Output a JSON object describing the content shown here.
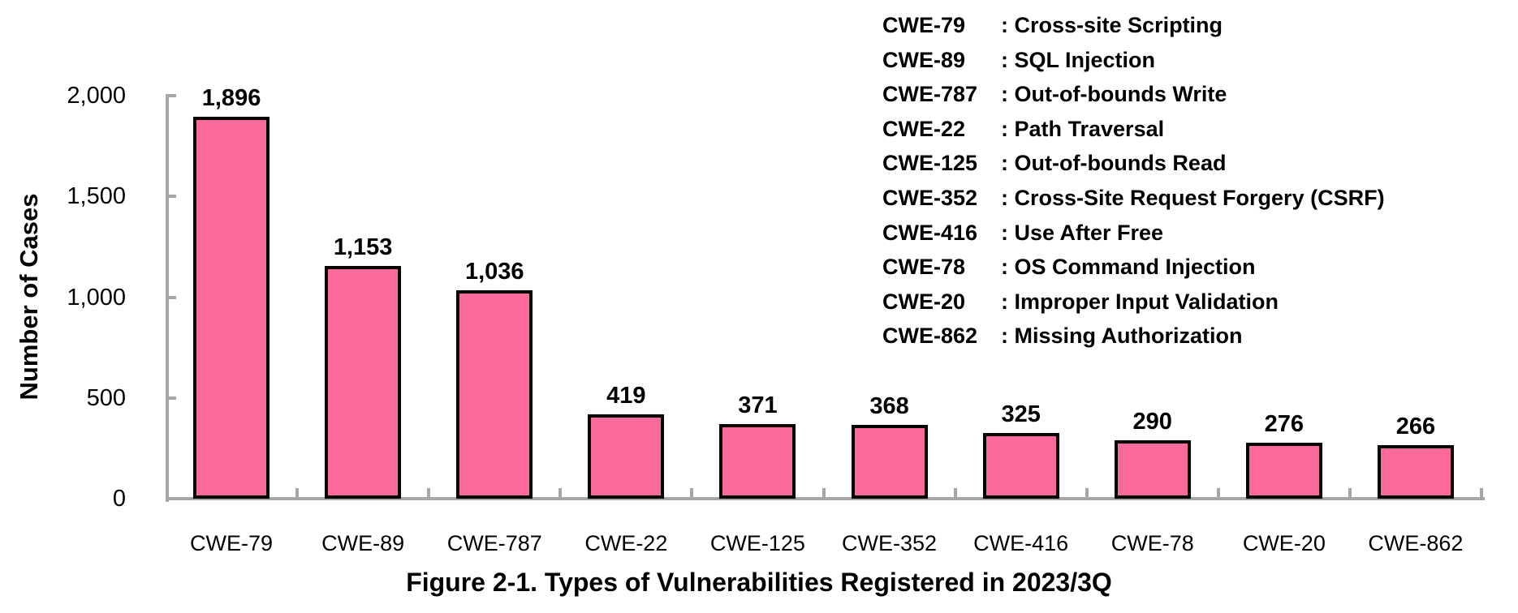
{
  "chart_data": {
    "type": "bar",
    "title": "Figure 2-1. Types of Vulnerabilities Registered in 2023/3Q",
    "ylabel": "Number of Cases",
    "ylim": [
      0,
      2000
    ],
    "grid": false,
    "legend_position": "top-right",
    "yticks": [
      {
        "value": 0,
        "label": "0"
      },
      {
        "value": 500,
        "label": "500"
      },
      {
        "value": 1000,
        "label": "1,000"
      },
      {
        "value": 1500,
        "label": "1,500"
      },
      {
        "value": 2000,
        "label": "2,000"
      }
    ],
    "categories": [
      "CWE-79",
      "CWE-89",
      "CWE-787",
      "CWE-22",
      "CWE-125",
      "CWE-352",
      "CWE-416",
      "CWE-78",
      "CWE-20",
      "CWE-862"
    ],
    "values": [
      1896,
      1153,
      1036,
      419,
      371,
      368,
      325,
      290,
      276,
      266
    ],
    "value_labels": [
      "1,896",
      "1,153",
      "1,036",
      "419",
      "371",
      "368",
      "325",
      "290",
      "276",
      "266"
    ],
    "bar_color": "#FA6A9C",
    "bar_border_color": "#000000",
    "axis_color": "#A6A6A6",
    "text_color": "#000000"
  },
  "legend": {
    "separator": ":",
    "entries": [
      {
        "code": "CWE-79",
        "label": "Cross-site Scripting"
      },
      {
        "code": "CWE-89",
        "label": "SQL Injection"
      },
      {
        "code": "CWE-787",
        "label": "Out-of-bounds Write"
      },
      {
        "code": "CWE-22",
        "label": "Path Traversal"
      },
      {
        "code": "CWE-125",
        "label": "Out-of-bounds Read"
      },
      {
        "code": "CWE-352",
        "label": "Cross-Site Request Forgery (CSRF)"
      },
      {
        "code": "CWE-416",
        "label": "Use After Free"
      },
      {
        "code": "CWE-78",
        "label": "OS Command Injection"
      },
      {
        "code": "CWE-20",
        "label": "Improper Input Validation"
      },
      {
        "code": "CWE-862",
        "label": "Missing Authorization"
      }
    ]
  }
}
